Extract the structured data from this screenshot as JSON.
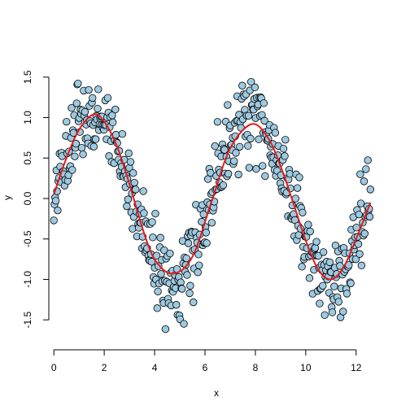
{
  "chart_data": {
    "type": "scatter",
    "title": "",
    "xlabel": "x",
    "ylabel": "y",
    "xlim": [
      -0.2,
      12.75
    ],
    "ylim": [
      -1.85,
      1.85
    ],
    "x_ticks": [
      0,
      2,
      4,
      6,
      8,
      10,
      12
    ],
    "y_ticks": [
      -1.5,
      -1.0,
      -0.5,
      0.0,
      0.5,
      1.0,
      1.5
    ],
    "x_tick_labels": [
      "0",
      "2",
      "4",
      "6",
      "8",
      "10",
      "12"
    ],
    "y_tick_labels": [
      "-1.5",
      "-1.0",
      "-0.5",
      "0.0",
      "0.5",
      "1.0",
      "1.5"
    ],
    "grid": false,
    "legend": "none",
    "point_fill": "#9ecae1",
    "point_edge": "#000000",
    "curve_color": "#e41a1c",
    "n_points": 500,
    "x_range": [
      0,
      12.566
    ],
    "trend": "approximately sin(x)",
    "noise_sd": 0.25,
    "series": [
      {
        "type": "line",
        "x": [
          0.0,
          0.5,
          1.0,
          1.57,
          2.0,
          2.5,
          3.0,
          3.5,
          4.0,
          4.71,
          5.5,
          6.28,
          7.0,
          7.85,
          8.5,
          9.0,
          9.5,
          10.0,
          10.5,
          11.0,
          11.5,
          12.0,
          12.57
        ],
        "y": [
          0.05,
          0.5,
          0.85,
          1.04,
          0.95,
          0.65,
          0.18,
          -0.35,
          -0.75,
          -0.93,
          -0.72,
          -0.02,
          0.62,
          0.92,
          0.75,
          0.4,
          -0.05,
          -0.52,
          -0.88,
          -1.0,
          -0.85,
          -0.5,
          -0.05
        ]
      }
    ]
  }
}
